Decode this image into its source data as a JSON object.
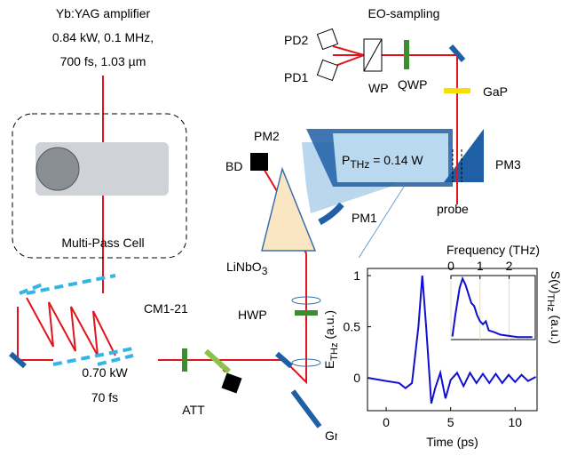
{
  "diagram": {
    "labels": {
      "amp1": "Yb:YAG amplifier",
      "amp2": "0.84 kW, 0.1 MHz,",
      "amp3": "700 fs, 1.03 µm",
      "mpc": "Multi-Pass Cell",
      "cm": "CM1-21",
      "pow1": "0.70 kW",
      "pow2": "70 fs",
      "att": "ATT",
      "hwp": "HWP",
      "gr": "Gr",
      "lnb": [
        "LiNbO",
        "3"
      ],
      "bd": "BD",
      "pm2": "PM2",
      "pm1": "PM1",
      "pthz": [
        "P",
        "THz",
        " = 0.14 W"
      ],
      "pm3": "PM3",
      "probe": "probe",
      "gap": "GaP",
      "eo": "EO-sampling",
      "pd2": "PD2",
      "pd1": "PD1",
      "wp": "WP",
      "qwp": "QWP"
    }
  },
  "chart_data": [
    {
      "type": "line",
      "xlabel": "Time (ps)",
      "ylabel": [
        "E",
        "THz",
        " (a.u.)"
      ],
      "x": [
        -1.4,
        0,
        1,
        1.5,
        2,
        2.5,
        2.8,
        3.1,
        3.5,
        3.8,
        4.2,
        4.6,
        5,
        5.5,
        6,
        6.5,
        7,
        7.5,
        8,
        8.5,
        9,
        9.5,
        10,
        10.5,
        11,
        11.6
      ],
      "series": [
        {
          "color": "#1010d0",
          "values": [
            0,
            -0.03,
            -0.05,
            -0.1,
            -0.05,
            0.5,
            1.0,
            0.5,
            -0.25,
            -0.1,
            0.05,
            -0.2,
            -0.02,
            0.05,
            -0.08,
            0.05,
            -0.05,
            0.04,
            -0.05,
            0.04,
            -0.05,
            0.03,
            -0.04,
            0.03,
            -0.03,
            0.01
          ]
        }
      ],
      "xlim": [
        -1.45,
        11.7
      ],
      "ylim": [
        -0.32,
        1.07
      ],
      "xticks": [
        0,
        5,
        10
      ],
      "yticks": [
        0,
        0.5,
        1
      ]
    },
    {
      "type": "line",
      "xlabel": "Frequency (THz)",
      "ylabel": [
        "S(ν)",
        "THz",
        " (a.u.)"
      ],
      "x": [
        0.05,
        0.15,
        0.3,
        0.4,
        0.5,
        0.6,
        0.7,
        0.8,
        0.9,
        1.0,
        1.1,
        1.2,
        1.3,
        1.5,
        1.7,
        2.0,
        2.3,
        2.8
      ],
      "series": [
        {
          "color": "#1010d0",
          "values": [
            0.05,
            0.4,
            0.85,
            1.0,
            0.9,
            0.75,
            0.6,
            0.55,
            0.4,
            0.3,
            0.25,
            0.3,
            0.15,
            0.12,
            0.08,
            0.06,
            0.04,
            0.04
          ]
        }
      ],
      "xlim": [
        0,
        2.9
      ],
      "ylim": [
        0,
        1.05
      ],
      "xticks": [
        0,
        1,
        2
      ],
      "grid": true
    }
  ]
}
